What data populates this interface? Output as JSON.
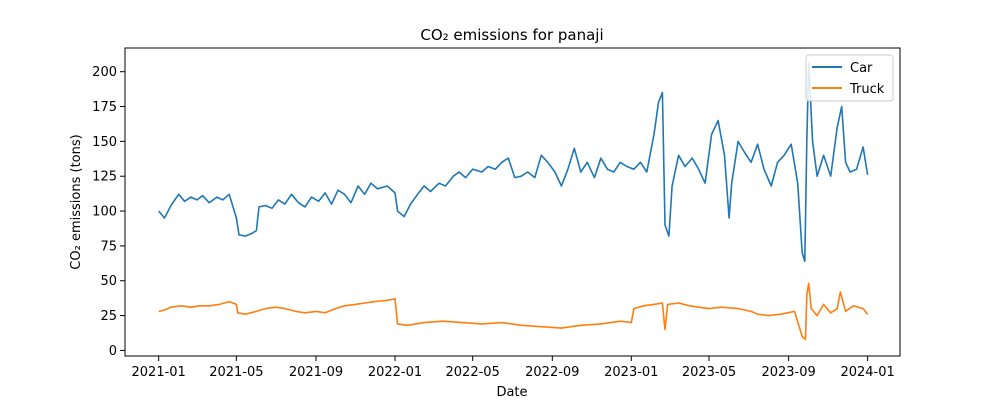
{
  "chart_data": {
    "type": "line",
    "title": "CO₂ emissions for panaji",
    "xlabel": "Date",
    "ylabel": "CO₂ emissions (tons)",
    "xlim": [
      "2020-11-10",
      "2024-02-20"
    ],
    "ylim": [
      -4,
      217
    ],
    "x_ticks": [
      "2021-01",
      "2021-05",
      "2021-09",
      "2022-01",
      "2022-05",
      "2022-09",
      "2023-01",
      "2023-05",
      "2023-09",
      "2024-01"
    ],
    "y_ticks": [
      0,
      25,
      50,
      75,
      100,
      125,
      150,
      175,
      200
    ],
    "grid": false,
    "legend_position": "top-right",
    "series": [
      {
        "name": "Car",
        "color": "#1f77b4",
        "points": [
          [
            "2021-01-01",
            100
          ],
          [
            "2021-01-10",
            95
          ],
          [
            "2021-01-20",
            104
          ],
          [
            "2021-02-01",
            112
          ],
          [
            "2021-02-10",
            107
          ],
          [
            "2021-02-20",
            110
          ],
          [
            "2021-03-01",
            108
          ],
          [
            "2021-03-10",
            111
          ],
          [
            "2021-03-20",
            106
          ],
          [
            "2021-04-01",
            110
          ],
          [
            "2021-04-10",
            108
          ],
          [
            "2021-04-20",
            112
          ],
          [
            "2021-05-01",
            95
          ],
          [
            "2021-05-05",
            83
          ],
          [
            "2021-05-15",
            82
          ],
          [
            "2021-05-25",
            84
          ],
          [
            "2021-06-01",
            86
          ],
          [
            "2021-06-05",
            103
          ],
          [
            "2021-06-15",
            104
          ],
          [
            "2021-06-25",
            102
          ],
          [
            "2021-07-05",
            108
          ],
          [
            "2021-07-15",
            105
          ],
          [
            "2021-07-25",
            112
          ],
          [
            "2021-08-05",
            106
          ],
          [
            "2021-08-15",
            103
          ],
          [
            "2021-08-25",
            110
          ],
          [
            "2021-09-05",
            107
          ],
          [
            "2021-09-15",
            113
          ],
          [
            "2021-09-25",
            105
          ],
          [
            "2021-10-05",
            115
          ],
          [
            "2021-10-15",
            112
          ],
          [
            "2021-10-25",
            106
          ],
          [
            "2021-11-05",
            118
          ],
          [
            "2021-11-15",
            112
          ],
          [
            "2021-11-25",
            120
          ],
          [
            "2021-12-05",
            116
          ],
          [
            "2021-12-20",
            118
          ],
          [
            "2022-01-01",
            113
          ],
          [
            "2022-01-05",
            100
          ],
          [
            "2022-01-15",
            96
          ],
          [
            "2022-01-25",
            105
          ],
          [
            "2022-02-05",
            112
          ],
          [
            "2022-02-15",
            118
          ],
          [
            "2022-02-25",
            114
          ],
          [
            "2022-03-10",
            120
          ],
          [
            "2022-03-20",
            118
          ],
          [
            "2022-04-01",
            125
          ],
          [
            "2022-04-10",
            128
          ],
          [
            "2022-04-20",
            124
          ],
          [
            "2022-05-01",
            130
          ],
          [
            "2022-05-15",
            128
          ],
          [
            "2022-05-25",
            132
          ],
          [
            "2022-06-05",
            130
          ],
          [
            "2022-06-15",
            135
          ],
          [
            "2022-06-25",
            138
          ],
          [
            "2022-07-05",
            124
          ],
          [
            "2022-07-15",
            125
          ],
          [
            "2022-07-25",
            128
          ],
          [
            "2022-08-05",
            124
          ],
          [
            "2022-08-15",
            140
          ],
          [
            "2022-08-25",
            135
          ],
          [
            "2022-09-05",
            128
          ],
          [
            "2022-09-15",
            118
          ],
          [
            "2022-09-25",
            130
          ],
          [
            "2022-10-05",
            145
          ],
          [
            "2022-10-15",
            128
          ],
          [
            "2022-10-25",
            135
          ],
          [
            "2022-11-05",
            124
          ],
          [
            "2022-11-15",
            138
          ],
          [
            "2022-11-25",
            130
          ],
          [
            "2022-12-05",
            128
          ],
          [
            "2022-12-15",
            135
          ],
          [
            "2022-12-25",
            132
          ],
          [
            "2023-01-05",
            130
          ],
          [
            "2023-01-15",
            135
          ],
          [
            "2023-01-25",
            128
          ],
          [
            "2023-02-05",
            155
          ],
          [
            "2023-02-12",
            178
          ],
          [
            "2023-02-18",
            185
          ],
          [
            "2023-02-22",
            90
          ],
          [
            "2023-02-28",
            82
          ],
          [
            "2023-03-05",
            118
          ],
          [
            "2023-03-15",
            140
          ],
          [
            "2023-03-25",
            132
          ],
          [
            "2023-04-05",
            138
          ],
          [
            "2023-04-15",
            130
          ],
          [
            "2023-04-25",
            120
          ],
          [
            "2023-05-05",
            155
          ],
          [
            "2023-05-15",
            165
          ],
          [
            "2023-05-25",
            140
          ],
          [
            "2023-06-01",
            95
          ],
          [
            "2023-06-05",
            120
          ],
          [
            "2023-06-15",
            150
          ],
          [
            "2023-06-25",
            142
          ],
          [
            "2023-07-05",
            135
          ],
          [
            "2023-07-15",
            148
          ],
          [
            "2023-07-25",
            130
          ],
          [
            "2023-08-05",
            118
          ],
          [
            "2023-08-15",
            135
          ],
          [
            "2023-08-25",
            140
          ],
          [
            "2023-09-05",
            148
          ],
          [
            "2023-09-15",
            120
          ],
          [
            "2023-09-22",
            70
          ],
          [
            "2023-09-26",
            64
          ],
          [
            "2023-09-29",
            150
          ],
          [
            "2023-10-02",
            206
          ],
          [
            "2023-10-08",
            150
          ],
          [
            "2023-10-15",
            125
          ],
          [
            "2023-10-25",
            140
          ],
          [
            "2023-11-05",
            125
          ],
          [
            "2023-11-15",
            160
          ],
          [
            "2023-11-22",
            175
          ],
          [
            "2023-11-28",
            135
          ],
          [
            "2023-12-05",
            128
          ],
          [
            "2023-12-15",
            130
          ],
          [
            "2023-12-25",
            146
          ],
          [
            "2024-01-01",
            126
          ]
        ]
      },
      {
        "name": "Truck",
        "color": "#ff7f0e",
        "points": [
          [
            "2021-01-01",
            28
          ],
          [
            "2021-01-10",
            29
          ],
          [
            "2021-01-20",
            31
          ],
          [
            "2021-02-05",
            32
          ],
          [
            "2021-02-20",
            31
          ],
          [
            "2021-03-05",
            32
          ],
          [
            "2021-03-20",
            32
          ],
          [
            "2021-04-05",
            33
          ],
          [
            "2021-04-20",
            35
          ],
          [
            "2021-05-01",
            33
          ],
          [
            "2021-05-03",
            27
          ],
          [
            "2021-05-15",
            26
          ],
          [
            "2021-06-01",
            28
          ],
          [
            "2021-06-15",
            30
          ],
          [
            "2021-07-01",
            31
          ],
          [
            "2021-07-15",
            30
          ],
          [
            "2021-08-01",
            28
          ],
          [
            "2021-08-15",
            27
          ],
          [
            "2021-09-01",
            28
          ],
          [
            "2021-09-15",
            27
          ],
          [
            "2021-10-01",
            30
          ],
          [
            "2021-10-15",
            32
          ],
          [
            "2021-11-01",
            33
          ],
          [
            "2021-11-15",
            34
          ],
          [
            "2021-12-01",
            35
          ],
          [
            "2021-12-20",
            36
          ],
          [
            "2022-01-01",
            37
          ],
          [
            "2022-01-05",
            19
          ],
          [
            "2022-01-20",
            18
          ],
          [
            "2022-02-15",
            20
          ],
          [
            "2022-03-15",
            21
          ],
          [
            "2022-04-15",
            20
          ],
          [
            "2022-05-15",
            19
          ],
          [
            "2022-06-15",
            20
          ],
          [
            "2022-07-15",
            18
          ],
          [
            "2022-08-15",
            17
          ],
          [
            "2022-09-15",
            16
          ],
          [
            "2022-10-15",
            18
          ],
          [
            "2022-11-15",
            19
          ],
          [
            "2022-12-15",
            21
          ],
          [
            "2023-01-01",
            20
          ],
          [
            "2023-01-05",
            30
          ],
          [
            "2023-01-20",
            32
          ],
          [
            "2023-02-05",
            33
          ],
          [
            "2023-02-18",
            34
          ],
          [
            "2023-02-22",
            15
          ],
          [
            "2023-02-26",
            33
          ],
          [
            "2023-03-15",
            34
          ],
          [
            "2023-04-01",
            32
          ],
          [
            "2023-04-15",
            31
          ],
          [
            "2023-05-01",
            30
          ],
          [
            "2023-05-20",
            31
          ],
          [
            "2023-06-15",
            30
          ],
          [
            "2023-07-05",
            28
          ],
          [
            "2023-07-15",
            26
          ],
          [
            "2023-08-01",
            25
          ],
          [
            "2023-08-20",
            26
          ],
          [
            "2023-09-10",
            28
          ],
          [
            "2023-09-22",
            10
          ],
          [
            "2023-09-27",
            8
          ],
          [
            "2023-09-29",
            40
          ],
          [
            "2023-10-02",
            48
          ],
          [
            "2023-10-06",
            30
          ],
          [
            "2023-10-15",
            25
          ],
          [
            "2023-10-25",
            33
          ],
          [
            "2023-11-05",
            27
          ],
          [
            "2023-11-15",
            30
          ],
          [
            "2023-11-20",
            42
          ],
          [
            "2023-11-28",
            28
          ],
          [
            "2023-12-10",
            32
          ],
          [
            "2023-12-25",
            30
          ],
          [
            "2024-01-01",
            26
          ]
        ]
      }
    ]
  }
}
